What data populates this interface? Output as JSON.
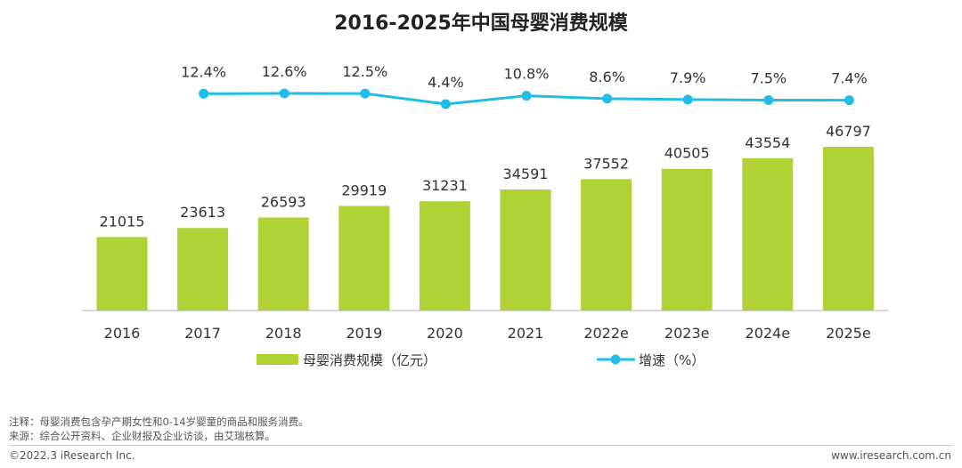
{
  "chart_data": {
    "type": "bar",
    "title": "2016-2025年中国母婴消费规模",
    "categories": [
      "2016",
      "2017",
      "2018",
      "2019",
      "2020",
      "2021",
      "2022e",
      "2023e",
      "2024e",
      "2025e"
    ],
    "series": [
      {
        "name": "母婴消费规模（亿元）",
        "type": "bar",
        "color": "#b1d235",
        "values": [
          21015,
          23613,
          26593,
          29919,
          31231,
          34591,
          37552,
          40505,
          43554,
          46797
        ]
      },
      {
        "name": "增速（%）",
        "type": "line",
        "color": "#21bde6",
        "values": [
          null,
          12.4,
          12.6,
          12.5,
          4.4,
          10.8,
          8.6,
          7.9,
          7.5,
          7.4
        ],
        "labels": [
          "",
          "12.4%",
          "12.6%",
          "12.5%",
          "4.4%",
          "10.8%",
          "8.6%",
          "7.9%",
          "7.5%",
          "7.4%"
        ]
      }
    ],
    "legend_position": "bottom",
    "grid": false
  },
  "notes": {
    "note": "注释：母婴消费包含孕产期女性和0-14岁婴童的商品和服务消费。",
    "source": "来源：综合公开资料、企业财报及企业访谈，由艾瑞核算。"
  },
  "footer": {
    "copyright": "©2022.3 iResearch Inc.",
    "website": "www.iresearch.com.cn"
  }
}
